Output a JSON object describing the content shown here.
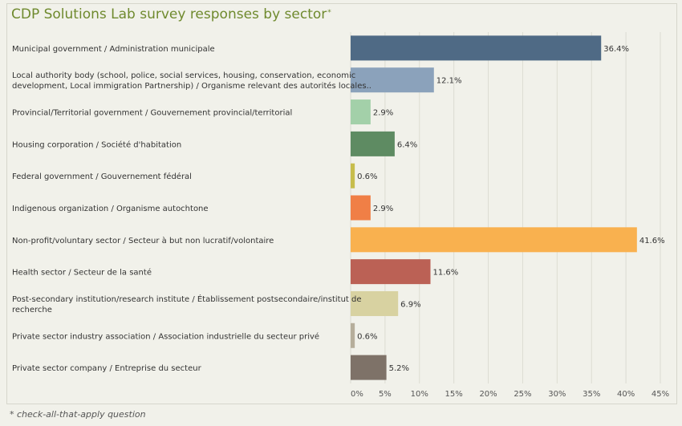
{
  "title": "CDP Solutions Lab survey responses by sector",
  "title_marker": "*",
  "footnote": "* check-all-that-apply question",
  "colors": {
    "title": "#6f8a2e",
    "gridline": "#dcdcd2",
    "text": "#333333"
  },
  "chart_data": {
    "type": "bar",
    "orientation": "horizontal",
    "title": "CDP Solutions Lab survey responses by sector",
    "xlabel": "",
    "ylabel": "",
    "xlim": [
      0,
      45
    ],
    "x_ticks": [
      0,
      5,
      10,
      15,
      20,
      25,
      30,
      35,
      40,
      45
    ],
    "tick_suffix": "%",
    "grid": true,
    "legend": "none",
    "categories": [
      [
        "Municipal government / Administration municipale"
      ],
      [
        "Local authority body (school, police, social services, housing, conservation, economic",
        "development, Local immigration Partnership) / Organisme relevant des autorités locales.."
      ],
      [
        "Provincial/Territorial government / Gouvernement provincial/territorial"
      ],
      [
        "Housing corporation / Société d'habitation"
      ],
      [
        "Federal government / Gouvernement fédéral"
      ],
      [
        "Indigenous organization / Organisme autochtone"
      ],
      [
        "Non-profit/voluntary sector / Secteur à but non lucratif/volontaire"
      ],
      [
        "Health sector / Secteur de la santé"
      ],
      [
        "Post-secondary institution/research institute / Établissement postsecondaire/institut de",
        "recherche"
      ],
      [
        "Private sector industry association / Association industrielle du secteur privé"
      ],
      [
        "Private sector company / Entreprise du secteur"
      ]
    ],
    "values": [
      36.4,
      12.1,
      2.9,
      6.4,
      0.6,
      2.9,
      41.6,
      11.6,
      6.9,
      0.6,
      5.2
    ],
    "value_labels": [
      "36.4%",
      "12.1%",
      "2.9%",
      "6.4%",
      "0.6%",
      "2.9%",
      "41.6%",
      "11.6%",
      "6.9%",
      "0.6%",
      "5.2%"
    ],
    "bar_colors": [
      "#4f6a85",
      "#8ba2bb",
      "#a3d0a9",
      "#5e8b62",
      "#c7bd4c",
      "#f07f46",
      "#f9b14f",
      "#bb6155",
      "#d8d2a1",
      "#b6ae9b",
      "#7e7268"
    ]
  }
}
